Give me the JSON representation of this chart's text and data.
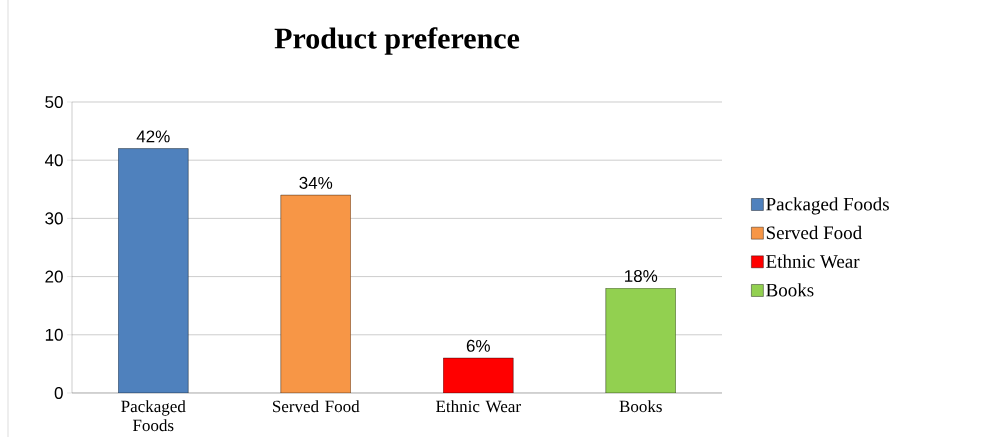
{
  "chart_data": {
    "type": "bar",
    "title": "Product preference",
    "categories": [
      "Packaged Foods",
      "Served Food",
      "Ethnic Wear",
      "Books"
    ],
    "series": [
      {
        "name": "Packaged Foods",
        "color": "#4f81bd",
        "values": [
          42,
          null,
          null,
          null
        ],
        "value_labels": [
          "42%",
          null,
          null,
          null
        ]
      },
      {
        "name": "Served Food",
        "color": "#f79646",
        "values": [
          null,
          34,
          null,
          null
        ],
        "value_labels": [
          null,
          "34%",
          null,
          null
        ]
      },
      {
        "name": "Ethnic Wear",
        "color": "#ff0000",
        "values": [
          null,
          null,
          6,
          null
        ],
        "value_labels": [
          null,
          null,
          "6%",
          null
        ]
      },
      {
        "name": "Books",
        "color": "#92d050",
        "values": [
          null,
          null,
          null,
          18
        ],
        "value_labels": [
          null,
          null,
          null,
          "18%"
        ]
      }
    ],
    "ylim": [
      0,
      50
    ],
    "yticks": [
      0,
      10,
      20,
      30,
      40,
      50
    ],
    "grid": "y",
    "legend": "right"
  }
}
